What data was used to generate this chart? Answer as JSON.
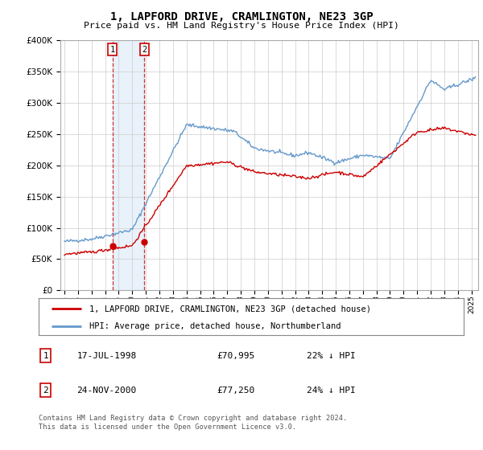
{
  "title": "1, LAPFORD DRIVE, CRAMLINGTON, NE23 3GP",
  "subtitle": "Price paid vs. HM Land Registry's House Price Index (HPI)",
  "legend_line1": "1, LAPFORD DRIVE, CRAMLINGTON, NE23 3GP (detached house)",
  "legend_line2": "HPI: Average price, detached house, Northumberland",
  "transaction1_label": "1",
  "transaction1_date": "17-JUL-1998",
  "transaction1_price": "£70,995",
  "transaction1_hpi": "22% ↓ HPI",
  "transaction2_label": "2",
  "transaction2_date": "24-NOV-2000",
  "transaction2_price": "£77,250",
  "transaction2_hpi": "24% ↓ HPI",
  "footer": "Contains HM Land Registry data © Crown copyright and database right 2024.\nThis data is licensed under the Open Government Licence v3.0.",
  "ylim": [
    0,
    400000
  ],
  "yticks": [
    0,
    50000,
    100000,
    150000,
    200000,
    250000,
    300000,
    350000,
    400000
  ],
  "red_color": "#cc0000",
  "blue_color": "#6699cc",
  "marker1_x": 1998.54,
  "marker1_y": 70995,
  "marker2_x": 2000.9,
  "marker2_y": 77250,
  "background_color": "#ffffff",
  "grid_color": "#cccccc",
  "xlim_left": 1994.7,
  "xlim_right": 2025.5
}
